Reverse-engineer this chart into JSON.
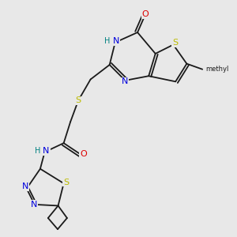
{
  "bg_color": "#e8e8e8",
  "colors": {
    "C": "#1a1a1a",
    "N": "#0000dd",
    "O": "#dd0000",
    "S": "#bbbb00",
    "H": "#008080"
  },
  "lw": 1.3,
  "fs": 8.0,
  "fs_small": 7.0
}
